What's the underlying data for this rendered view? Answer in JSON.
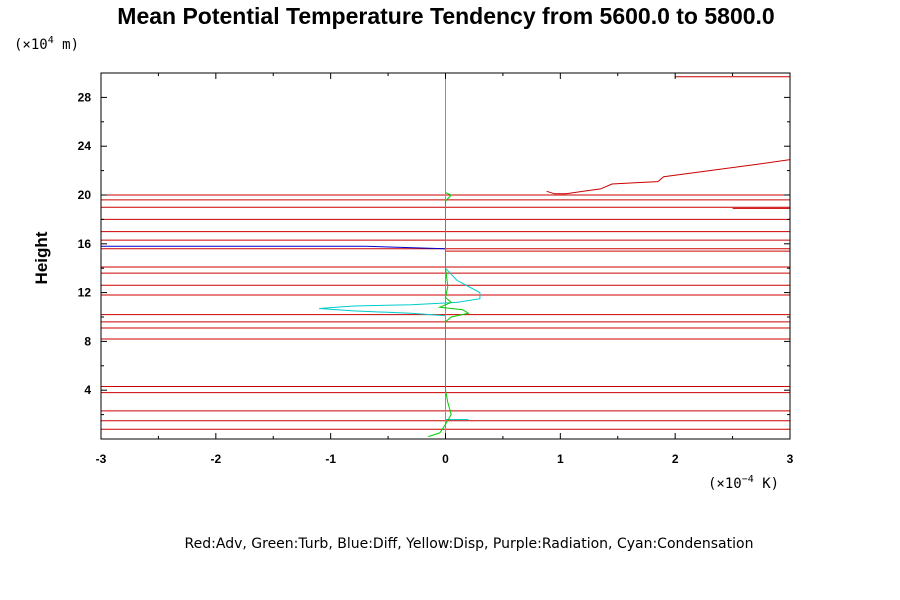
{
  "chart_data": {
    "type": "line",
    "title": "Mean Potential Temperature Tendency from 5600.0 to 5800.0",
    "ylabel": "Height",
    "x_unit": {
      "prefix": "(×10",
      "exp": "−4",
      "suffix": " K)"
    },
    "y_unit": {
      "prefix": "(×10",
      "exp": "4",
      "suffix": " m)"
    },
    "xlim": [
      -3,
      3
    ],
    "ylim": [
      0,
      30
    ],
    "x_ticks": [
      "-3",
      "-2",
      "-1",
      "0",
      "1",
      "2",
      "3"
    ],
    "y_ticks": [
      "4",
      "8",
      "12",
      "16",
      "20",
      "24",
      "28"
    ],
    "legend": "Red:Adv, Green:Turb, Blue:Diff, Yellow:Disp, Purple:Radiation, Cyan:Condensation",
    "series": [
      {
        "key": "adv",
        "color": "#cc0000",
        "segments": [
          [
            [
              -3,
              0.8
            ],
            [
              3,
              0.8
            ]
          ],
          [
            [
              -3,
              1.5
            ],
            [
              3,
              1.5
            ]
          ],
          [
            [
              -3,
              2.3
            ],
            [
              3,
              2.3
            ]
          ],
          [
            [
              -3,
              3.8
            ],
            [
              3,
              3.8
            ]
          ],
          [
            [
              -3,
              4.3
            ],
            [
              3,
              4.3
            ]
          ],
          [
            [
              -3,
              8.2
            ],
            [
              3,
              8.2
            ]
          ],
          [
            [
              -3,
              9.1
            ],
            [
              3,
              9.1
            ]
          ],
          [
            [
              -3,
              9.6
            ],
            [
              3,
              9.6
            ]
          ],
          [
            [
              -3,
              10.2
            ],
            [
              3,
              10.2
            ]
          ],
          [
            [
              -3,
              11.8
            ],
            [
              3,
              11.8
            ]
          ],
          [
            [
              -3,
              12.6
            ],
            [
              3,
              12.6
            ]
          ],
          [
            [
              -3,
              13.6
            ],
            [
              3,
              13.6
            ]
          ],
          [
            [
              -3,
              14.1
            ],
            [
              3,
              14.1
            ]
          ],
          [
            [
              -3,
              15.6
            ],
            [
              3,
              15.6
            ]
          ],
          [
            [
              -3,
              16.3
            ],
            [
              3,
              16.3
            ]
          ],
          [
            [
              -3,
              17.0
            ],
            [
              3,
              17.0
            ]
          ],
          [
            [
              -3,
              18.0
            ],
            [
              3,
              18.0
            ]
          ],
          [
            [
              -3,
              19.0
            ],
            [
              3,
              19.0
            ]
          ],
          [
            [
              -3,
              19.6
            ],
            [
              3,
              19.6
            ]
          ],
          [
            [
              -3,
              20.0
            ],
            [
              3,
              20.0
            ]
          ],
          [
            [
              0,
              15.4
            ],
            [
              3,
              15.4
            ]
          ],
          [
            [
              2.5,
              18.9
            ],
            [
              3,
              18.9
            ]
          ],
          [
            [
              2,
              29.7
            ],
            [
              3,
              29.7
            ]
          ],
          [
            [
              0.88,
              20.3
            ],
            [
              0.95,
              20.1
            ],
            [
              1.05,
              20.1
            ],
            [
              1.2,
              20.3
            ],
            [
              1.35,
              20.5
            ],
            [
              1.45,
              20.9
            ],
            [
              1.65,
              21.0
            ],
            [
              1.85,
              21.1
            ],
            [
              1.9,
              21.5
            ],
            [
              2.3,
              22.0
            ],
            [
              2.7,
              22.5
            ],
            [
              3,
              22.9
            ]
          ]
        ]
      },
      {
        "key": "turb",
        "color": "#00cc00",
        "segments": [
          [
            [
              -0.15,
              0.2
            ],
            [
              -0.05,
              0.5
            ],
            [
              0,
              1.2
            ],
            [
              0.05,
              2.0
            ],
            [
              0.02,
              3.0
            ],
            [
              0,
              4.0
            ],
            [
              0,
              9.6
            ],
            [
              0.05,
              10.0
            ],
            [
              0.2,
              10.3
            ],
            [
              0.15,
              10.6
            ],
            [
              -0.05,
              10.8
            ],
            [
              0,
              11.0
            ],
            [
              0.05,
              11.2
            ],
            [
              0,
              11.6
            ],
            [
              0.02,
              12.5
            ],
            [
              0,
              14.0
            ],
            [
              0,
              19.5
            ],
            [
              0.05,
              20.0
            ],
            [
              0,
              20.2
            ]
          ]
        ]
      },
      {
        "key": "diff",
        "color": "#0000cc",
        "segments": [
          [
            [
              -3,
              15.8
            ],
            [
              -0.7,
              15.8
            ],
            [
              0,
              15.6
            ]
          ]
        ]
      },
      {
        "key": "disp",
        "color": "#d8d800",
        "segments": [
          [
            [
              0,
              0
            ],
            [
              0,
              30
            ]
          ]
        ]
      },
      {
        "key": "condensation",
        "color": "#00cccc",
        "segments": [
          [
            [
              0,
              0.2
            ],
            [
              0,
              30
            ]
          ],
          [
            [
              0,
              10.1
            ],
            [
              -0.3,
              10.3
            ],
            [
              -0.8,
              10.5
            ],
            [
              -1.1,
              10.7
            ],
            [
              -0.8,
              10.9
            ],
            [
              -0.3,
              11.0
            ],
            [
              0.1,
              11.2
            ],
            [
              0.3,
              11.5
            ],
            [
              0.3,
              12.0
            ],
            [
              0.2,
              12.5
            ],
            [
              0.1,
              13.0
            ],
            [
              0.05,
              13.5
            ],
            [
              0,
              14.0
            ]
          ],
          [
            [
              0,
              1.6
            ],
            [
              0.2,
              1.6
            ]
          ]
        ]
      }
    ]
  }
}
